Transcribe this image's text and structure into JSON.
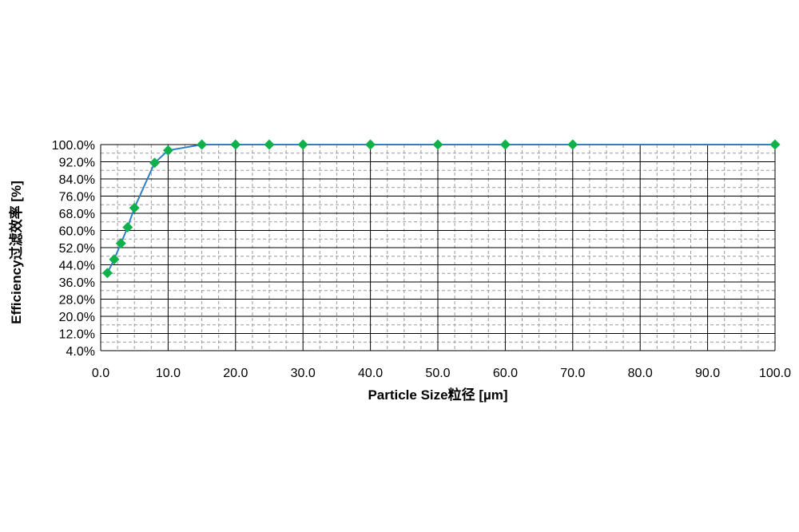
{
  "chart_data": {
    "type": "line",
    "xlabel": "Particle Size粒径 [µm]",
    "ylabel": "Efficiency过滤效率 [%]",
    "xlim": [
      0,
      100
    ],
    "ylim": [
      4,
      100
    ],
    "x_major_step": 10,
    "x_minor_step": 2.5,
    "y_major_step": 8,
    "y_minor_step": 4,
    "x_ticks": [
      "0.0",
      "10.0",
      "20.0",
      "30.0",
      "40.0",
      "50.0",
      "60.0",
      "70.0",
      "80.0",
      "90.0",
      "100.0"
    ],
    "y_ticks": [
      "100.0%",
      "92.0%",
      "84.0%",
      "76.0%",
      "68.0%",
      "60.0%",
      "52.0%",
      "44.0%",
      "36.0%",
      "28.0%",
      "20.0%",
      "12.0%",
      "4.0%"
    ],
    "grid": true,
    "legend": "none",
    "line_color": "#2f7fc6",
    "marker_color": "#10b14b",
    "marker": "diamond",
    "series": [
      {
        "x": [
          1,
          2,
          3,
          4,
          5,
          8,
          10,
          15,
          20,
          25,
          30,
          40,
          50,
          60,
          70,
          100
        ],
        "y": [
          40.2,
          46.5,
          54.0,
          61.5,
          70.5,
          91.5,
          97.3,
          100,
          100,
          100,
          100,
          100,
          100,
          100,
          100,
          100
        ]
      }
    ]
  }
}
